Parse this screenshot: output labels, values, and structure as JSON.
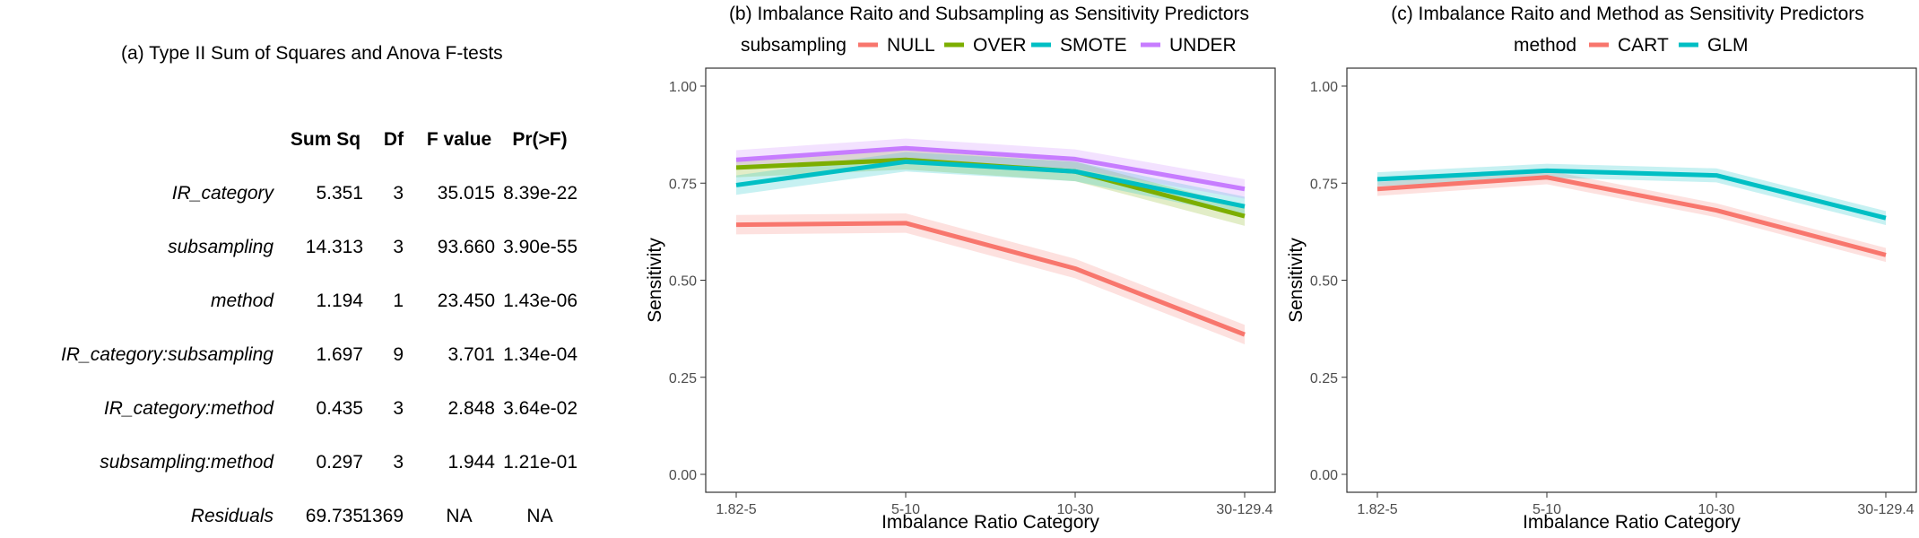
{
  "anova": {
    "title": "(a) Type II Sum of Squares and Anova F-tests",
    "columns": [
      "Sum Sq",
      "Df",
      "F value",
      "Pr(>F)"
    ],
    "rows": [
      {
        "label": "IR_category",
        "cells": [
          "5.351",
          "3",
          "35.015",
          "8.39e-22"
        ]
      },
      {
        "label": "subsampling",
        "cells": [
          "14.313",
          "3",
          "93.660",
          "3.90e-55"
        ]
      },
      {
        "label": "method",
        "cells": [
          "1.194",
          "1",
          "23.450",
          "1.43e-06"
        ]
      },
      {
        "label": "IR_category:subsampling",
        "cells": [
          "1.697",
          "9",
          "3.701",
          "1.34e-04"
        ]
      },
      {
        "label": "IR_category:method",
        "cells": [
          "0.435",
          "3",
          "2.848",
          "3.64e-02"
        ]
      },
      {
        "label": "subsampling:method",
        "cells": [
          "0.297",
          "3",
          "1.944",
          "1.21e-01"
        ]
      },
      {
        "label": "Residuals",
        "cells": [
          "69.735",
          "1369",
          "NA",
          "NA"
        ]
      }
    ]
  },
  "chart_data": [
    {
      "type": "line",
      "title": "(b) Imbalance Raito and Subsampling as Sensitivity Predictors",
      "legend_title": "subsampling",
      "legend_position": "top",
      "xlabel": "Imbalance Ratio Category",
      "ylabel": "Sensitivity",
      "categories": [
        "1.82-5",
        "5-10",
        "10-30",
        "30-129.4"
      ],
      "ylim": [
        0,
        1
      ],
      "yticks": [
        "0.00",
        "0.25",
        "0.50",
        "0.75",
        "1.00"
      ],
      "grid": false,
      "confidence_bands": true,
      "series": [
        {
          "name": "NULL",
          "color": "#F8766D",
          "values": [
            0.643,
            0.647,
            0.53,
            0.36
          ],
          "band": 0.025
        },
        {
          "name": "OVER",
          "color": "#7CAE00",
          "values": [
            0.79,
            0.81,
            0.78,
            0.665
          ],
          "band": 0.025
        },
        {
          "name": "SMOTE",
          "color": "#00BFC4",
          "values": [
            0.745,
            0.805,
            0.78,
            0.69
          ],
          "band": 0.025
        },
        {
          "name": "UNDER",
          "color": "#C77CFF",
          "values": [
            0.81,
            0.84,
            0.812,
            0.735
          ],
          "band": 0.025
        }
      ]
    },
    {
      "type": "line",
      "title": "(c) Imbalance Raito and Method as Sensitivity Predictors",
      "legend_title": "method",
      "legend_position": "top",
      "xlabel": "Imbalance Ratio Category",
      "ylabel": "Sensitivity",
      "categories": [
        "1.82-5",
        "5-10",
        "10-30",
        "30-129.4"
      ],
      "ylim": [
        0,
        1
      ],
      "yticks": [
        "0.00",
        "0.25",
        "0.50",
        "0.75",
        "1.00"
      ],
      "grid": false,
      "confidence_bands": true,
      "series": [
        {
          "name": "CART",
          "color": "#F8766D",
          "values": [
            0.735,
            0.765,
            0.68,
            0.565
          ],
          "band": 0.018
        },
        {
          "name": "GLM",
          "color": "#00BFC4",
          "values": [
            0.76,
            0.782,
            0.77,
            0.66
          ],
          "band": 0.018
        }
      ]
    }
  ]
}
